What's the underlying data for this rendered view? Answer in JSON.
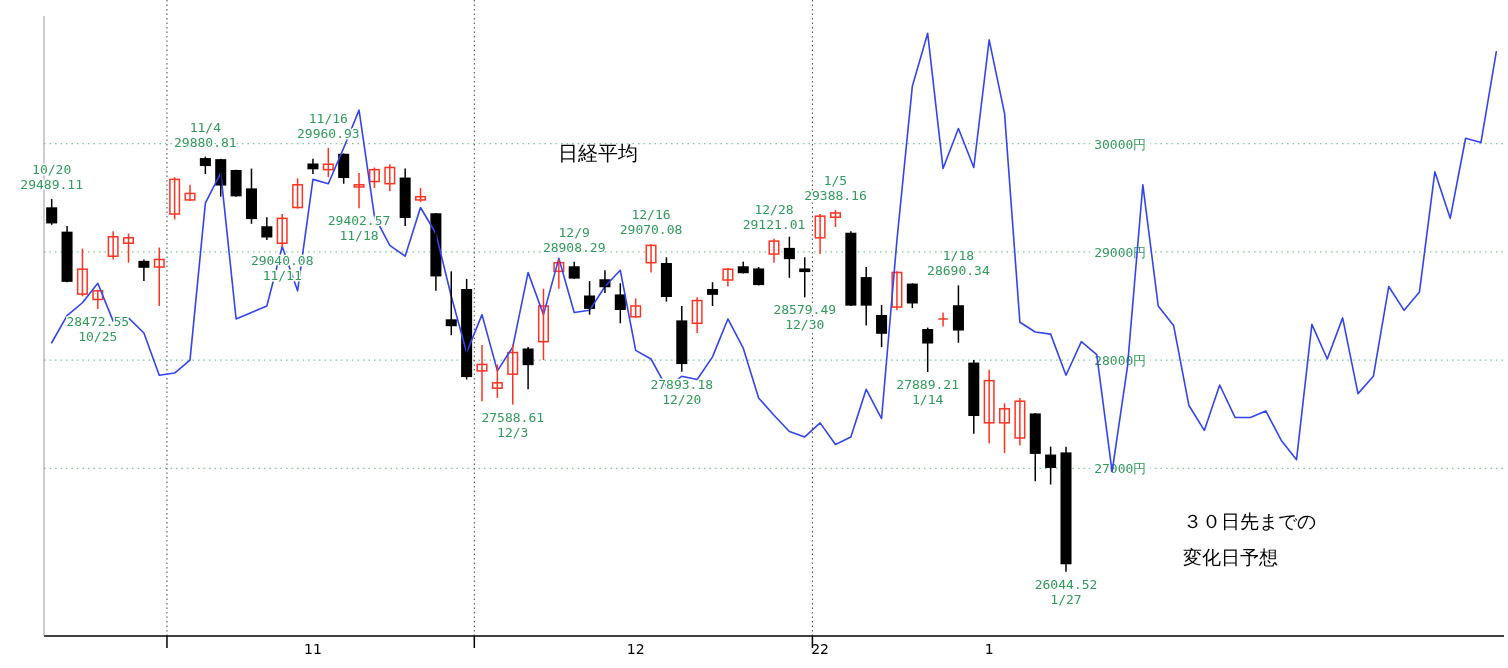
{
  "chart_data": {
    "type": "candlestick",
    "title": "日経平均",
    "categories": [
      null,
      null,
      null,
      null,
      null,
      null,
      null,
      null,
      null,
      null,
      null,
      null,
      null,
      null,
      null,
      null,
      null,
      "11",
      null,
      null,
      null,
      null,
      null,
      null,
      null,
      null,
      null,
      null,
      null,
      null,
      null,
      null,
      null,
      null,
      null,
      null,
      null,
      null,
      "12",
      null,
      null,
      null,
      null,
      null,
      null,
      null,
      null,
      null,
      null,
      null,
      "22",
      null,
      null,
      null,
      null,
      null,
      null,
      null,
      null,
      null,
      null,
      "1",
      null,
      null,
      null,
      null,
      null,
      null,
      null,
      null,
      null,
      null,
      null,
      null,
      null,
      null,
      null,
      null,
      null,
      null,
      null,
      null,
      null,
      null,
      null,
      null,
      null,
      null,
      null,
      null,
      null,
      null,
      null,
      null,
      null
    ],
    "ohlc": [
      [
        29405,
        29489.11,
        29250,
        29270
      ],
      [
        29180,
        29240,
        28720,
        28730
      ],
      [
        28610,
        29030,
        28590,
        28840
      ],
      [
        28560,
        28650,
        28472.55,
        28640
      ],
      [
        28960,
        29190,
        28930,
        29140
      ],
      [
        29080,
        29170,
        28900,
        29130
      ],
      [
        28910,
        28930,
        28730,
        28860
      ],
      [
        28860,
        29040,
        28500,
        28930
      ],
      [
        29350,
        29690,
        29300,
        29670
      ],
      [
        29480,
        29620,
        29470,
        29540
      ],
      [
        29860,
        29880.81,
        29720,
        29800
      ],
      [
        29850,
        29860,
        29510,
        29620
      ],
      [
        29750,
        29760,
        29510,
        29520
      ],
      [
        29580,
        29770,
        29260,
        29310
      ],
      [
        29230,
        29320,
        29110,
        29140
      ],
      [
        29080,
        29350,
        29040.08,
        29310
      ],
      [
        29410,
        29680,
        29400,
        29620
      ],
      [
        29810,
        29860,
        29720,
        29770
      ],
      [
        29760,
        29960.93,
        29690,
        29810
      ],
      [
        29900,
        29910,
        29630,
        29690
      ],
      [
        29600,
        29730,
        29402.57,
        29620
      ],
      [
        29650,
        29780,
        29590,
        29760
      ],
      [
        29630,
        29810,
        29560,
        29780
      ],
      [
        29680,
        29770,
        29240,
        29320
      ],
      [
        29480,
        29590,
        29460,
        29510
      ],
      [
        29350,
        29360,
        28640,
        28780
      ],
      [
        28370,
        28820,
        28230,
        28320
      ],
      [
        28650,
        28750,
        27820,
        27850
      ],
      [
        27900,
        28140,
        27620,
        27960
      ],
      [
        27740,
        27960,
        27650,
        27790
      ],
      [
        27870,
        28140,
        27588.61,
        28070
      ],
      [
        28100,
        28120,
        27730,
        27960
      ],
      [
        28170,
        28660,
        28000,
        28500
      ],
      [
        28820,
        28930,
        28660,
        28900
      ],
      [
        28860,
        28908.29,
        28750,
        28760
      ],
      [
        28590,
        28730,
        28420,
        28480
      ],
      [
        28740,
        28830,
        28620,
        28680
      ],
      [
        28600,
        28710,
        28340,
        28470
      ],
      [
        28400,
        28570,
        28390,
        28500
      ],
      [
        28900,
        29070.08,
        28810,
        29060
      ],
      [
        28890,
        28950,
        28540,
        28590
      ],
      [
        28360,
        28500,
        27893.18,
        27970
      ],
      [
        28340,
        28580,
        28250,
        28550
      ],
      [
        28650,
        28720,
        28500,
        28610
      ],
      [
        28740,
        28850,
        28680,
        28840
      ],
      [
        28860,
        28910,
        28800,
        28810
      ],
      [
        28840,
        28860,
        28690,
        28700
      ],
      [
        28980,
        29121.01,
        28900,
        29100
      ],
      [
        29030,
        29140,
        28760,
        28940
      ],
      [
        28840,
        28950,
        28579.49,
        28820
      ],
      [
        29130,
        29350,
        28980,
        29330
      ],
      [
        29320,
        29388.16,
        29230,
        29360
      ],
      [
        29170,
        29190,
        28500,
        28510
      ],
      [
        28760,
        28860,
        28320,
        28510
      ],
      [
        28410,
        28510,
        28120,
        28250
      ],
      [
        28490,
        28820,
        28460,
        28810
      ],
      [
        28700,
        28710,
        28480,
        28530
      ],
      [
        28280,
        28300,
        27889.21,
        28160
      ],
      [
        28370,
        28440,
        28310,
        28380
      ],
      [
        28500,
        28690.34,
        28160,
        28280
      ],
      [
        27970,
        28000,
        27320,
        27490
      ],
      [
        27420,
        27910,
        27230,
        27810
      ],
      [
        27420,
        27600,
        27140,
        27550
      ],
      [
        27280,
        27650,
        27210,
        27620
      ],
      [
        27500,
        27510,
        26880,
        27140
      ],
      [
        27120,
        27200,
        26850,
        27010
      ],
      [
        27140,
        27200,
        26044.52,
        26120
      ],
      null,
      null,
      null,
      null,
      null,
      null,
      null,
      null,
      null,
      null,
      null,
      null,
      null,
      null,
      null,
      null,
      null,
      null,
      null,
      null,
      null,
      null,
      null,
      null,
      null,
      null,
      null,
      null
    ],
    "series": [
      {
        "type": "line",
        "color": "#3344ee",
        "values": [
          28160,
          28410,
          28530,
          28710,
          28360,
          28390,
          28250,
          27860,
          27880,
          28000,
          29450,
          29730,
          28380,
          28440,
          28500,
          29050,
          28640,
          29670,
          29630,
          29960,
          30310,
          29330,
          29060,
          28960,
          29410,
          29170,
          28590,
          28070,
          28420,
          27900,
          28120,
          28810,
          28420,
          28940,
          28440,
          28460,
          28680,
          28830,
          28090,
          28010,
          27750,
          27850,
          27820,
          28030,
          28380,
          28110,
          27650,
          27490,
          27340,
          27290,
          27420,
          27220,
          27290,
          27730,
          27460,
          29110,
          30530,
          31020,
          29770,
          30140,
          29780,
          30960,
          30280,
          28350,
          28260,
          28240,
          27860,
          28170,
          28050,
          26970,
          27940,
          29620,
          28500,
          28320,
          27580,
          27350,
          27770,
          27470,
          27470,
          27530,
          27260,
          27080,
          28330,
          28010,
          28390,
          27690,
          27850,
          28680,
          28460,
          28630,
          29740,
          29310,
          30050,
          30010,
          30850
        ]
      }
    ],
    "ylim": [
      25450,
      31180
    ],
    "yticks": [
      {
        "value": 27000,
        "label": "27000円"
      },
      {
        "value": 28000,
        "label": "28000円"
      },
      {
        "value": 29000,
        "label": "29000円"
      },
      {
        "value": 30000,
        "label": "30000円"
      }
    ],
    "grid": "y",
    "annotations": [
      {
        "text": "10/20\n29489.11",
        "y": 29489.11
      },
      {
        "text": "28472.55\n10/25",
        "y": 28472.55
      },
      {
        "text": "11/4\n29880.81",
        "y": 29880.81
      },
      {
        "text": "29040.08\n11/11",
        "y": 29040.08
      },
      {
        "text": "11/16\n29960.93",
        "y": 29960.93
      },
      {
        "text": "29402.57\n11/18",
        "y": 29402.57
      },
      {
        "text": "27588.61\n12/3",
        "y": 27588.61
      },
      {
        "text": "12/9\n28908.29",
        "y": 28908.29
      },
      {
        "text": "12/16\n29070.08",
        "y": 29070.08
      },
      {
        "text": "27893.18\n12/20",
        "y": 27893.18
      },
      {
        "text": "12/28\n29121.01",
        "y": 29121.01
      },
      {
        "text": "28579.49\n12/30",
        "y": 28579.49
      },
      {
        "text": "1/5\n29388.16",
        "y": 29388.16
      },
      {
        "text": "27889.21\n1/14",
        "y": 27889.21
      },
      {
        "text": "1/18\n28690.34",
        "y": 28690.34
      },
      {
        "text": "26044.52\n1/27",
        "y": 26044.52
      },
      "３０日先までの",
      "変化日予想"
    ]
  }
}
